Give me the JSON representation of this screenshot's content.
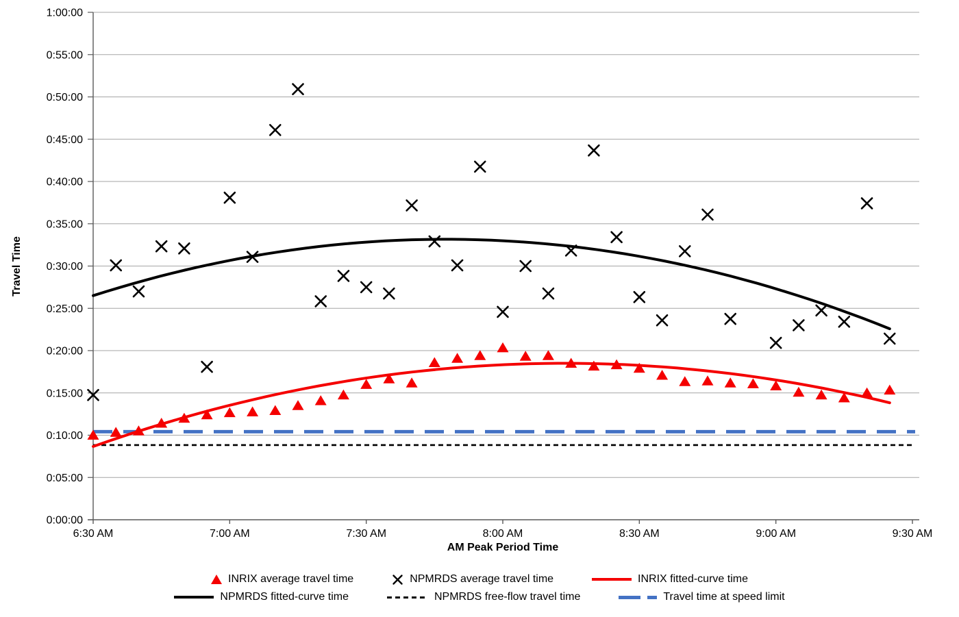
{
  "chart_data": {
    "type": "scatter",
    "title": "",
    "xlabel": "AM Peak Period Time",
    "ylabel": "Travel Time",
    "x_tick_labels": [
      "6:30 AM",
      "7:00 AM",
      "7:30 AM",
      "8:00 AM",
      "8:30 AM",
      "9:00 AM",
      "9:30 AM"
    ],
    "y_tick_labels": [
      "0:00:00",
      "0:05:00",
      "0:10:00",
      "0:15:00",
      "0:20:00",
      "0:25:00",
      "0:30:00",
      "0:35:00",
      "0:40:00",
      "0:45:00",
      "0:50:00",
      "0:55:00",
      "1:00:00"
    ],
    "x_range": [
      "6:30 AM",
      "9:30 AM"
    ],
    "ylim_travel_minutes": [
      0,
      60
    ],
    "y_tick_step_minutes": 5,
    "grid": "horizontal-only",
    "legend_position": "bottom-two-rows",
    "colors": {
      "inrix": "#f40000",
      "npmrds": "#000000",
      "speed_limit": "#4472c4",
      "gridline": "#a6a6a6",
      "axis": "#595959"
    },
    "series": [
      {
        "name": "INRIX average travel time",
        "kind": "scatter",
        "marker": "triangle",
        "color": "#f40000",
        "points": [
          [
            "6:30 AM",
            "0:10:00"
          ],
          [
            "6:35 AM",
            "0:10:20"
          ],
          [
            "6:40 AM",
            "0:10:30"
          ],
          [
            "6:45 AM",
            "0:11:25"
          ],
          [
            "6:50 AM",
            "0:12:00"
          ],
          [
            "6:55 AM",
            "0:12:25"
          ],
          [
            "7:00 AM",
            "0:12:40"
          ],
          [
            "7:05 AM",
            "0:12:45"
          ],
          [
            "7:10 AM",
            "0:12:55"
          ],
          [
            "7:15 AM",
            "0:13:30"
          ],
          [
            "7:20 AM",
            "0:14:05"
          ],
          [
            "7:25 AM",
            "0:14:45"
          ],
          [
            "7:30 AM",
            "0:16:00"
          ],
          [
            "7:35 AM",
            "0:16:40"
          ],
          [
            "7:40 AM",
            "0:16:10"
          ],
          [
            "7:45 AM",
            "0:18:35"
          ],
          [
            "7:50 AM",
            "0:19:05"
          ],
          [
            "7:55 AM",
            "0:19:25"
          ],
          [
            "8:00 AM",
            "0:20:20"
          ],
          [
            "8:05 AM",
            "0:19:20"
          ],
          [
            "8:10 AM",
            "0:19:25"
          ],
          [
            "8:15 AM",
            "0:18:30"
          ],
          [
            "8:20 AM",
            "0:18:10"
          ],
          [
            "8:25 AM",
            "0:18:20"
          ],
          [
            "8:30 AM",
            "0:17:55"
          ],
          [
            "8:35 AM",
            "0:17:05"
          ],
          [
            "8:40 AM",
            "0:16:20"
          ],
          [
            "8:45 AM",
            "0:16:25"
          ],
          [
            "8:50 AM",
            "0:16:10"
          ],
          [
            "8:55 AM",
            "0:16:05"
          ],
          [
            "9:00 AM",
            "0:15:50"
          ],
          [
            "9:05 AM",
            "0:15:05"
          ],
          [
            "9:10 AM",
            "0:14:45"
          ],
          [
            "9:15 AM",
            "0:14:25"
          ],
          [
            "9:20 AM",
            "0:15:00"
          ],
          [
            "9:25 AM",
            "0:15:20"
          ]
        ]
      },
      {
        "name": "NPMRDS average travel time",
        "kind": "scatter",
        "marker": "x",
        "color": "#000000",
        "points": [
          [
            "6:30 AM",
            "0:14:45"
          ],
          [
            "6:35 AM",
            "0:30:05"
          ],
          [
            "6:40 AM",
            "0:27:00"
          ],
          [
            "6:45 AM",
            "0:32:20"
          ],
          [
            "6:50 AM",
            "0:32:05"
          ],
          [
            "6:55 AM",
            "0:18:05"
          ],
          [
            "7:00 AM",
            "0:38:05"
          ],
          [
            "7:05 AM",
            "0:31:05"
          ],
          [
            "7:10 AM",
            "0:46:05"
          ],
          [
            "7:15 AM",
            "0:50:55"
          ],
          [
            "7:20 AM",
            "0:25:50"
          ],
          [
            "7:25 AM",
            "0:28:50"
          ],
          [
            "7:30 AM",
            "0:27:30"
          ],
          [
            "7:35 AM",
            "0:26:45"
          ],
          [
            "7:40 AM",
            "0:37:10"
          ],
          [
            "7:45 AM",
            "0:32:55"
          ],
          [
            "7:50 AM",
            "0:30:05"
          ],
          [
            "7:55 AM",
            "0:41:45"
          ],
          [
            "8:00 AM",
            "0:24:35"
          ],
          [
            "8:05 AM",
            "0:30:00"
          ],
          [
            "8:10 AM",
            "0:26:45"
          ],
          [
            "8:15 AM",
            "0:31:50"
          ],
          [
            "8:20 AM",
            "0:43:40"
          ],
          [
            "8:25 AM",
            "0:33:25"
          ],
          [
            "8:30 AM",
            "0:26:20"
          ],
          [
            "8:35 AM",
            "0:23:35"
          ],
          [
            "8:40 AM",
            "0:31:45"
          ],
          [
            "8:45 AM",
            "0:36:05"
          ],
          [
            "8:50 AM",
            "0:23:45"
          ],
          [
            "9:00 AM",
            "0:20:55"
          ],
          [
            "9:05 AM",
            "0:23:00"
          ],
          [
            "9:10 AM",
            "0:24:45"
          ],
          [
            "9:15 AM",
            "0:23:25"
          ],
          [
            "9:20 AM",
            "0:37:25"
          ],
          [
            "9:25 AM",
            "0:21:25"
          ]
        ]
      },
      {
        "name": "INRIX fitted-curve time",
        "kind": "fitted-quadratic",
        "color": "#f40000",
        "line_style": "solid",
        "fit_points": {
          "start": [
            "6:30 AM",
            "0:08:40"
          ],
          "peak": [
            "8:14 AM",
            "0:18:30"
          ],
          "end": [
            "9:25 AM",
            "0:13:50"
          ]
        }
      },
      {
        "name": "NPMRDS fitted-curve time",
        "kind": "fitted-quadratic",
        "color": "#000000",
        "line_style": "solid",
        "fit_points": {
          "start": [
            "6:30 AM",
            "0:26:30"
          ],
          "peak": [
            "7:48 AM",
            "0:33:10"
          ],
          "end": [
            "9:25 AM",
            "0:22:35"
          ]
        }
      },
      {
        "name": "NPMRDS free-flow travel time",
        "kind": "horizontal-line",
        "color": "#000000",
        "line_style": "dotted",
        "value": "0:08:50"
      },
      {
        "name": "Travel time at speed limit",
        "kind": "horizontal-line",
        "color": "#4472c4",
        "line_style": "long-dash",
        "value": "0:10:25"
      }
    ]
  }
}
